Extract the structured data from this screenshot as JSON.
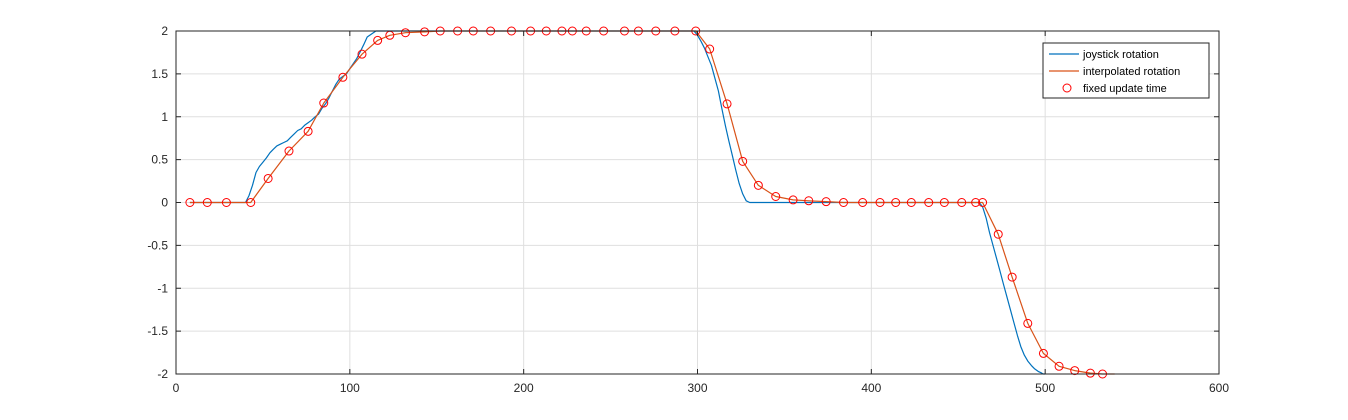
{
  "chart_data": {
    "type": "line",
    "title": "",
    "xlabel": "",
    "ylabel": "",
    "xlim": [
      0,
      600
    ],
    "ylim": [
      -2,
      2
    ],
    "xticks": [
      0,
      100,
      200,
      300,
      400,
      500,
      600
    ],
    "yticks": [
      2,
      1.5,
      1,
      0.5,
      0,
      -0.5,
      -1,
      -1.5,
      -2
    ],
    "xtick_labels": [
      "0",
      "100",
      "200",
      "300",
      "400",
      "500",
      "600"
    ],
    "ytick_labels": [
      "2",
      "1.5",
      "1",
      "0.5",
      "0",
      "-0.5",
      "-1",
      "-1.5",
      "-2"
    ],
    "grid": true,
    "legend_position": "top-right",
    "series": [
      {
        "name": "joystick rotation",
        "color": "#0072BD",
        "style": "line",
        "x": [
          8,
          40,
          42,
          44,
          46,
          48,
          50,
          52,
          54,
          56,
          58,
          60,
          62,
          64,
          66,
          68,
          70,
          72,
          74,
          76,
          78,
          80,
          82,
          84,
          86,
          88,
          90,
          92,
          94,
          96,
          98,
          100,
          102,
          104,
          106,
          108,
          110,
          115,
          120,
          130,
          140,
          200,
          250,
          298,
          300,
          302,
          304,
          306,
          308,
          310,
          312,
          314,
          316,
          318,
          320,
          322,
          324,
          326,
          328,
          330,
          332,
          340,
          400,
          462,
          464,
          466,
          468,
          470,
          472,
          474,
          476,
          478,
          480,
          482,
          484,
          486,
          488,
          490,
          492,
          494,
          496,
          498,
          499,
          500
        ],
        "y": [
          0,
          0,
          0.08,
          0.2,
          0.35,
          0.42,
          0.47,
          0.52,
          0.58,
          0.62,
          0.66,
          0.68,
          0.7,
          0.72,
          0.76,
          0.8,
          0.84,
          0.86,
          0.9,
          0.93,
          0.96,
          1.0,
          1.03,
          1.1,
          1.15,
          1.22,
          1.3,
          1.38,
          1.44,
          1.47,
          1.5,
          1.56,
          1.62,
          1.68,
          1.76,
          1.84,
          1.93,
          2.0,
          2.0,
          2.0,
          2.0,
          2.0,
          2.0,
          2.0,
          1.95,
          1.88,
          1.8,
          1.7,
          1.6,
          1.45,
          1.3,
          1.1,
          0.9,
          0.72,
          0.55,
          0.38,
          0.22,
          0.1,
          0.02,
          0,
          0,
          0,
          0,
          0,
          -0.05,
          -0.18,
          -0.35,
          -0.5,
          -0.65,
          -0.8,
          -0.95,
          -1.1,
          -1.25,
          -1.4,
          -1.55,
          -1.68,
          -1.78,
          -1.85,
          -1.9,
          -1.94,
          -1.97,
          -1.99,
          -2.0,
          -2.0
        ]
      },
      {
        "name": "interpolated rotation",
        "color": "#D95319",
        "style": "line",
        "x": [
          8,
          18,
          29,
          43,
          53,
          65,
          76,
          85,
          96,
          107,
          116,
          123,
          132,
          143,
          152,
          162,
          171,
          181,
          193,
          204,
          213,
          222,
          228,
          236,
          246,
          258,
          266,
          276,
          287,
          299,
          307,
          317,
          326,
          335,
          345,
          355,
          364,
          374,
          384,
          395,
          405,
          414,
          423,
          433,
          442,
          452,
          460,
          464,
          473,
          481,
          490,
          499,
          508,
          517,
          526,
          533,
          540
        ],
        "y": [
          0,
          0,
          0,
          0,
          0.28,
          0.6,
          0.83,
          1.16,
          1.46,
          1.73,
          1.89,
          1.95,
          1.98,
          1.99,
          2.0,
          2.0,
          2.0,
          2.0,
          2.0,
          2.0,
          2.0,
          2.0,
          2.0,
          2.0,
          2.0,
          2.0,
          2.0,
          2.0,
          2.0,
          2.0,
          1.79,
          1.15,
          0.48,
          0.2,
          0.07,
          0.03,
          0.02,
          0.01,
          0.0,
          0.0,
          0.0,
          0.0,
          0.0,
          0.0,
          0.0,
          0.0,
          0.0,
          0.0,
          -0.37,
          -0.87,
          -1.41,
          -1.76,
          -1.91,
          -1.96,
          -1.99,
          -2.0,
          -2.0
        ]
      },
      {
        "name": "fixed update time",
        "color": "#FF0000",
        "style": "marker-circle",
        "x": [
          8,
          18,
          29,
          43,
          53,
          65,
          76,
          85,
          96,
          107,
          116,
          123,
          132,
          143,
          152,
          162,
          171,
          181,
          193,
          204,
          213,
          222,
          228,
          236,
          246,
          258,
          266,
          276,
          287,
          299,
          307,
          317,
          326,
          335,
          345,
          355,
          364,
          374,
          384,
          395,
          405,
          414,
          423,
          433,
          442,
          452,
          460,
          464,
          473,
          481,
          490,
          499,
          508,
          517,
          526,
          533
        ],
        "y": [
          0,
          0,
          0,
          0,
          0.28,
          0.6,
          0.83,
          1.16,
          1.46,
          1.73,
          1.89,
          1.95,
          1.98,
          1.99,
          2.0,
          2.0,
          2.0,
          2.0,
          2.0,
          2.0,
          2.0,
          2.0,
          2.0,
          2.0,
          2.0,
          2.0,
          2.0,
          2.0,
          2.0,
          2.0,
          1.79,
          1.15,
          0.48,
          0.2,
          0.07,
          0.03,
          0.02,
          0.01,
          0.0,
          0.0,
          0.0,
          0.0,
          0.0,
          0.0,
          0.0,
          0.0,
          0.0,
          0.0,
          -0.37,
          -0.87,
          -1.41,
          -1.76,
          -1.91,
          -1.96,
          -1.99,
          -2.0
        ]
      }
    ]
  }
}
